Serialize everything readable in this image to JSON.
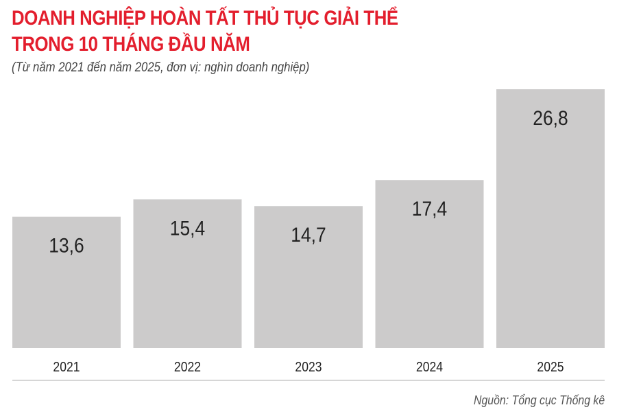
{
  "chart_data": {
    "type": "bar",
    "title_lines": [
      "DOANH NGHIỆP HOÀN TẤT THỦ TỤC GIẢI THỂ",
      "TRONG 10 THÁNG ĐẦU NĂM"
    ],
    "subtitle": "(Từ năm 2021 đến năm 2025, đơn vị: nghìn doanh nghiệp)",
    "categories": [
      "2021",
      "2022",
      "2023",
      "2024",
      "2025"
    ],
    "values": [
      13.6,
      15.4,
      14.7,
      17.4,
      26.8
    ],
    "data_labels": [
      "13,6",
      "15,4",
      "14,7",
      "17,4",
      "26,8"
    ],
    "xlabel": "",
    "ylabel": "",
    "ylim": [
      0,
      26.8
    ],
    "grid": false,
    "bar_color": "#cccbcb",
    "title_color": "#e31e2d",
    "source": "Nguồn: Tổng cục Thống kê"
  }
}
